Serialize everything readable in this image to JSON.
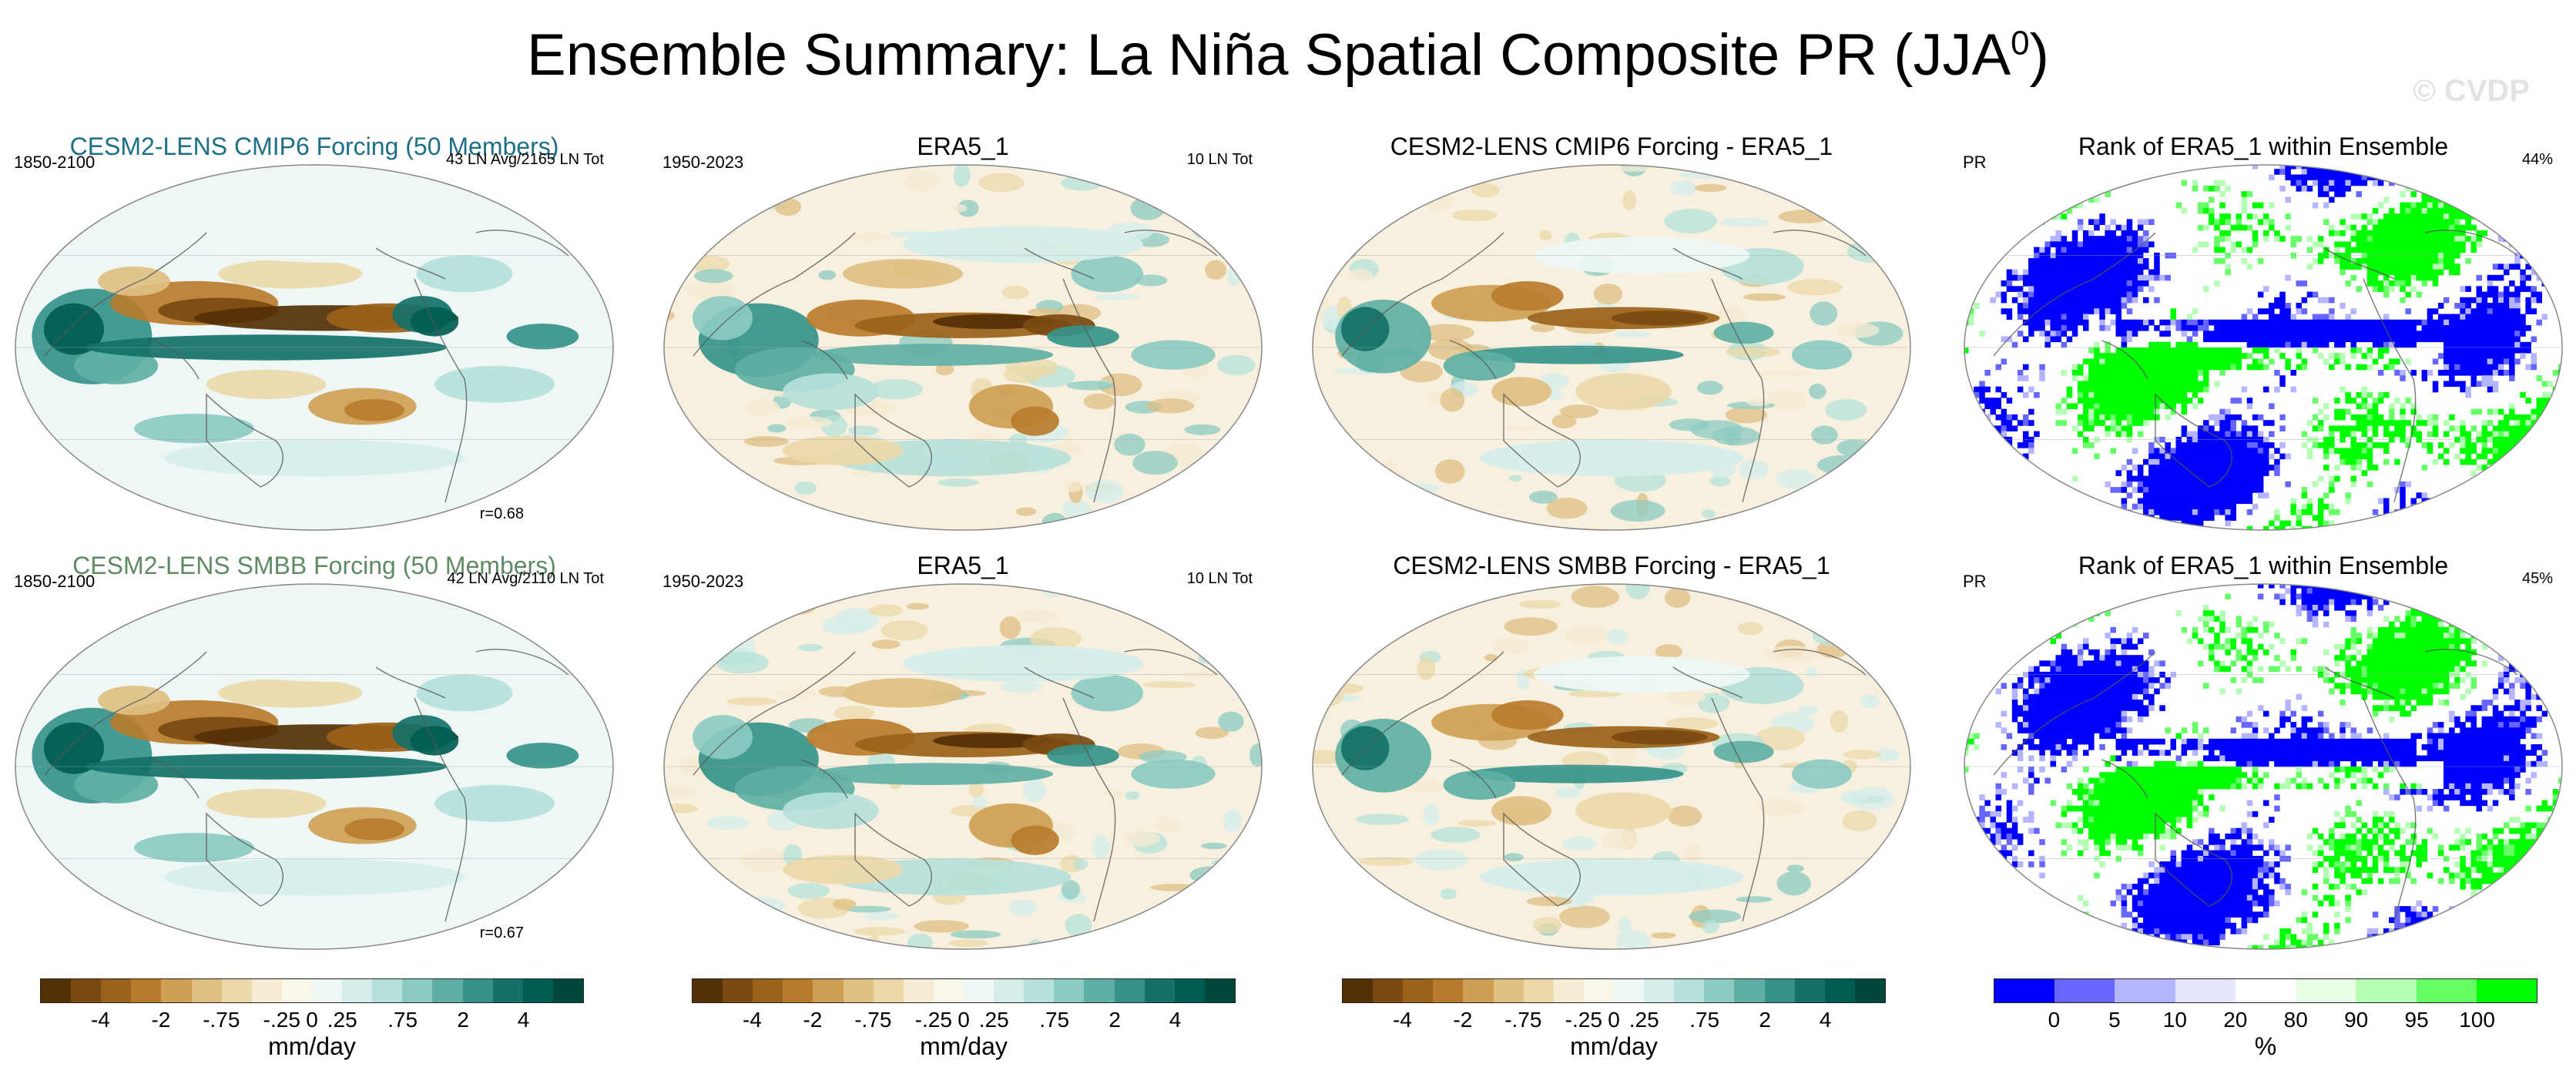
{
  "header": {
    "title_main": "Ensemble Summary: La Niña Spatial Composite PR (JJA",
    "title_sup": "0",
    "title_close": ")",
    "watermark": "© CVDP"
  },
  "colors": {
    "brown_teal": [
      "#543005",
      "#7a4a10",
      "#9a6219",
      "#b87c2c",
      "#cfa054",
      "#dfbf82",
      "#ecd9aa",
      "#f6ebd3",
      "#fbf6ea",
      "#eef7f5",
      "#d5eeeb",
      "#b6e1da",
      "#8ccbc1",
      "#5fb0a4",
      "#35938a",
      "#137168",
      "#015d52",
      "#00473b"
    ],
    "rank": [
      "#0000ff",
      "#6666ff",
      "#b4b4ff",
      "#e6e6ff",
      "#ffffff",
      "#e6ffe6",
      "#b4ffb4",
      "#66ff66",
      "#00ff00"
    ]
  },
  "panels": [
    {
      "id": "r1c1",
      "title": "CESM2-LENS CMIP6 Forcing (50 Members)",
      "title_color": "#1d6f86",
      "left": "1850-2100",
      "right": "43 LN Avg/2165 LN Tot",
      "bottom": "r=0.68",
      "kind": "model"
    },
    {
      "id": "r1c2",
      "title": "ERA5_1",
      "title_color": "#000000",
      "left": "1950-2023",
      "right": "10 LN Tot",
      "bottom": "",
      "kind": "obs"
    },
    {
      "id": "r1c3",
      "title": "CESM2-LENS CMIP6 Forcing - ERA5_1",
      "title_color": "#000000",
      "left": "",
      "right": "",
      "bottom": "",
      "kind": "diff"
    },
    {
      "id": "r1c4",
      "title": "Rank of ERA5_1 within Ensemble",
      "title_color": "#000000",
      "left": "PR",
      "right": "44%",
      "bottom": "",
      "kind": "rank"
    },
    {
      "id": "r2c1",
      "title": "CESM2-LENS SMBB Forcing (50 Members)",
      "title_color": "#5f8a64",
      "left": "1850-2100",
      "right": "42 LN Avg/2110 LN Tot",
      "bottom": "r=0.67",
      "kind": "model"
    },
    {
      "id": "r2c2",
      "title": "ERA5_1",
      "title_color": "#000000",
      "left": "1950-2023",
      "right": "10 LN Tot",
      "bottom": "",
      "kind": "obs"
    },
    {
      "id": "r2c3",
      "title": "CESM2-LENS SMBB Forcing - ERA5_1",
      "title_color": "#000000",
      "left": "",
      "right": "",
      "bottom": "",
      "kind": "diff"
    },
    {
      "id": "r2c4",
      "title": "Rank of ERA5_1 within Ensemble",
      "title_color": "#000000",
      "left": "PR",
      "right": "45%",
      "bottom": "",
      "kind": "rank"
    }
  ],
  "colorbars": [
    {
      "id": "cb1",
      "palette": "brown_teal",
      "ticks": [
        "-4",
        "-2",
        "-.75",
        "-.25",
        "0",
        ".25",
        ".75",
        "2",
        "4"
      ],
      "unit": "mm/day"
    },
    {
      "id": "cb2",
      "palette": "brown_teal",
      "ticks": [
        "-4",
        "-2",
        "-.75",
        "-.25",
        "0",
        ".25",
        ".75",
        "2",
        "4"
      ],
      "unit": "mm/day"
    },
    {
      "id": "cb3",
      "palette": "brown_teal",
      "ticks": [
        "-4",
        "-2",
        "-.75",
        "-.25",
        "0",
        ".25",
        ".75",
        "2",
        "4"
      ],
      "unit": "mm/day"
    },
    {
      "id": "cb4",
      "palette": "rank",
      "ticks": [
        "0",
        "5",
        "10",
        "20",
        "80",
        "90",
        "95",
        "100"
      ],
      "unit": "%"
    }
  ]
}
